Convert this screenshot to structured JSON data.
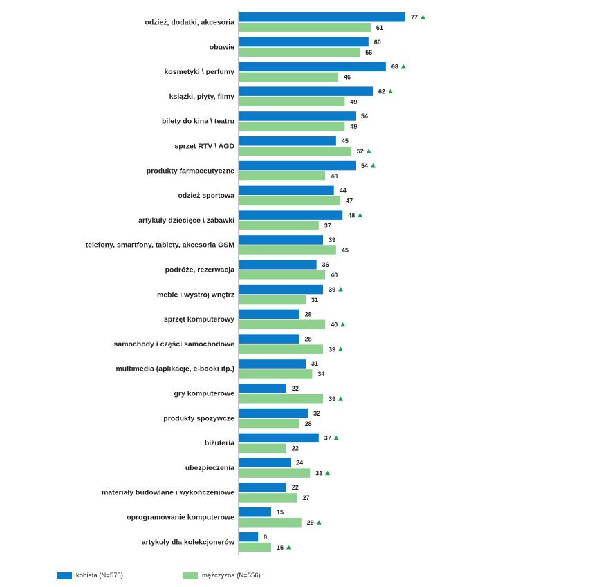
{
  "chart_data": {
    "type": "bar",
    "orientation": "horizontal",
    "categories": [
      "odzież, dodatki, akcesoria",
      "obuwie",
      "kosmetyki \\ perfumy",
      "książki, płyty, filmy",
      "bilety do kina \\ teatru",
      "sprzęt RTV \\ AGD",
      "produkty farmaceutyczne",
      "odzież sportowa",
      "artykuły dziecięce \\ zabawki",
      "telefony, smartfony, tablety, akcesoria GSM",
      "podróże, rezerwacja",
      "meble i wystrój wnętrz",
      "sprzęt komputerowy",
      "samochody i części samochodowe",
      "multimedia (aplikacje, e-booki itp.)",
      "gry komputerowe",
      "produkty spożywcze",
      "biżuteria",
      "ubezpieczenia",
      "materiały budowlane i wykończeniowe",
      "oprogramowanie komputerowe",
      "artykuły dla kolekcjonerów"
    ],
    "series": [
      {
        "name": "kobieta (N=575)",
        "color": "#0a7ac9",
        "values": [
          77,
          60,
          68,
          62,
          54,
          45,
          54,
          44,
          48,
          39,
          36,
          39,
          28,
          28,
          31,
          22,
          32,
          37,
          24,
          22,
          15,
          9
        ],
        "significant_higher": [
          true,
          false,
          true,
          true,
          false,
          false,
          true,
          false,
          true,
          false,
          false,
          true,
          false,
          false,
          false,
          false,
          false,
          true,
          false,
          false,
          false,
          false
        ]
      },
      {
        "name": "mężczyzna (N=556)",
        "color": "#8ed18f",
        "values": [
          61,
          56,
          46,
          49,
          49,
          52,
          40,
          47,
          37,
          45,
          40,
          31,
          40,
          39,
          34,
          39,
          28,
          22,
          33,
          27,
          29,
          15
        ],
        "significant_higher": [
          false,
          false,
          false,
          false,
          false,
          true,
          false,
          false,
          false,
          false,
          false,
          false,
          true,
          true,
          false,
          true,
          false,
          false,
          true,
          false,
          true,
          true
        ]
      }
    ],
    "xlim": [
      0,
      80
    ],
    "grid": false,
    "legend_position": "bottom",
    "marker_color": "#1a9e4a"
  }
}
